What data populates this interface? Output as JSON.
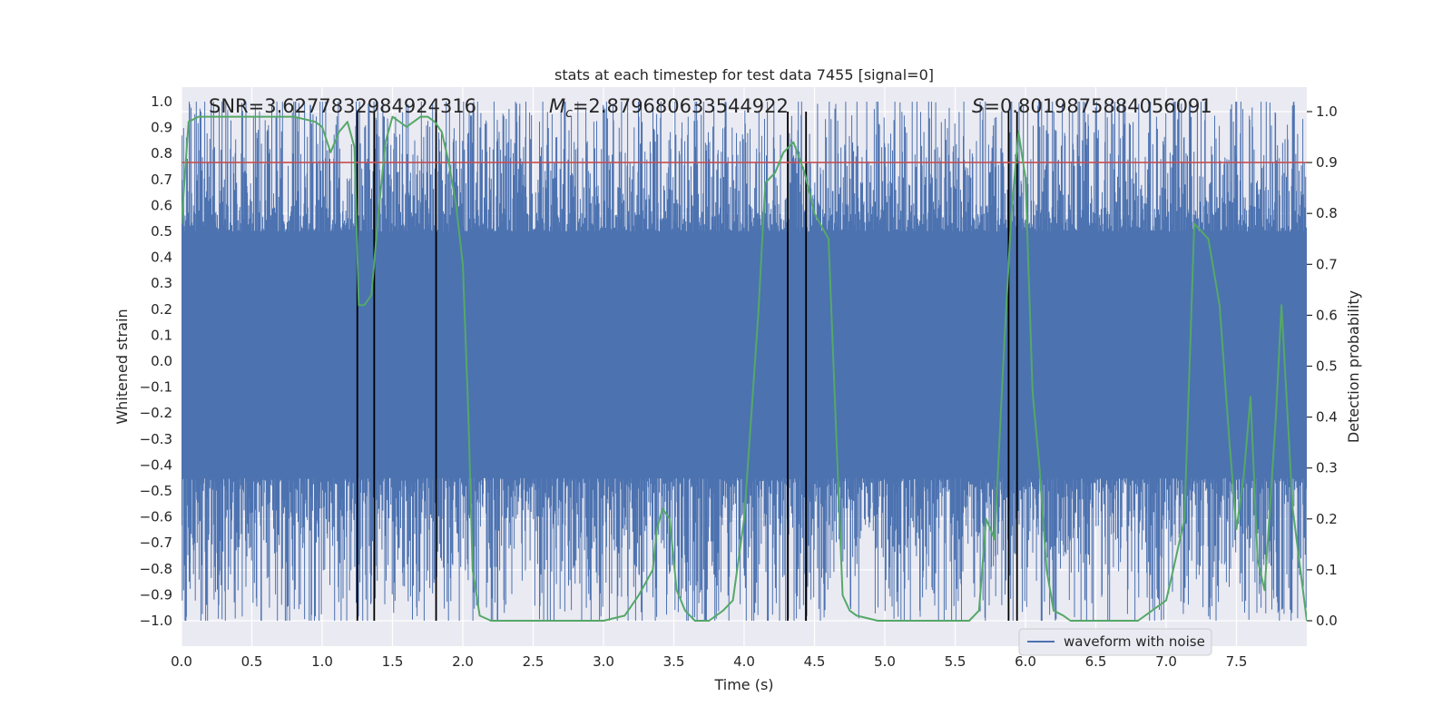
{
  "chart_data": {
    "type": "line",
    "title": "stats at each timestep for test data 7455 [signal=0]",
    "xlabel": "Time (s)",
    "ylabel": "Whitened strain",
    "y2label": "Detection probability",
    "xlim": [
      0.0,
      8.0
    ],
    "ylim": [
      -1.0,
      1.0
    ],
    "y2lim": [
      0.0,
      1.0
    ],
    "xticks": [
      0.0,
      0.5,
      1.0,
      1.5,
      2.0,
      2.5,
      3.0,
      3.5,
      4.0,
      4.5,
      5.0,
      5.5,
      6.0,
      6.5,
      7.0,
      7.5
    ],
    "xtick_labels": [
      "0.0",
      "0.5",
      "1.0",
      "1.5",
      "2.0",
      "2.5",
      "3.0",
      "3.5",
      "4.0",
      "4.5",
      "5.0",
      "5.5",
      "6.0",
      "6.5",
      "7.0",
      "7.5"
    ],
    "yticks": [
      1.0,
      0.9,
      0.8,
      0.7,
      0.6,
      0.5,
      0.4,
      0.3,
      0.2,
      0.1,
      0.0,
      -0.1,
      -0.2,
      -0.3,
      -0.4,
      -0.5,
      -0.6,
      -0.7,
      -0.8,
      -0.9,
      -1.0
    ],
    "ytick_labels": [
      "1.0",
      "0.9",
      "0.8",
      "0.7",
      "0.6",
      "0.5",
      "0.4",
      "0.3",
      "0.2",
      "0.1",
      "0.0",
      "−0.1",
      "−0.2",
      "−0.3",
      "−0.4",
      "−0.5",
      "−0.6",
      "−0.7",
      "−0.8",
      "−0.9",
      "−1.0"
    ],
    "y2ticks": [
      1.0,
      0.9,
      0.8,
      0.7,
      0.6,
      0.5,
      0.4,
      0.3,
      0.2,
      0.1,
      0.0
    ],
    "y2tick_labels": [
      "1.0",
      "0.9",
      "0.8",
      "0.7",
      "0.6",
      "0.5",
      "0.4",
      "0.3",
      "0.2",
      "0.1",
      "0.0"
    ],
    "annotations": {
      "snr": "SNR=3.6277832984924316",
      "mc_symbol": "M",
      "mc_sub": "c",
      "mc_value": "=2.879680633544922",
      "s_symbol": "S",
      "s_value": "=0.8019875884056091"
    },
    "series": [
      {
        "name": "waveform with noise",
        "axis": "left",
        "color": "#4c72b0",
        "style": "dense noise",
        "core_band": [
          -0.45,
          0.5
        ],
        "peak_max": 1.0,
        "trough_min": -1.0
      },
      {
        "name": "detection probability",
        "axis": "right",
        "color": "#55a868",
        "x": [
          0.0,
          0.05,
          0.12,
          0.25,
          0.5,
          0.8,
          0.95,
          1.0,
          1.06,
          1.12,
          1.18,
          1.23,
          1.26,
          1.3,
          1.35,
          1.4,
          1.45,
          1.5,
          1.55,
          1.6,
          1.65,
          1.7,
          1.75,
          1.8,
          1.85,
          1.9,
          1.95,
          2.0,
          2.04,
          2.07,
          2.12,
          2.2,
          2.5,
          2.8,
          3.0,
          3.15,
          3.25,
          3.35,
          3.38,
          3.42,
          3.47,
          3.52,
          3.58,
          3.65,
          3.75,
          3.85,
          3.92,
          4.0,
          4.1,
          4.15,
          4.22,
          4.28,
          4.35,
          4.43,
          4.5,
          4.6,
          4.7,
          4.75,
          4.8,
          4.95,
          5.05,
          5.3,
          5.5,
          5.6,
          5.67,
          5.72,
          5.78,
          5.85,
          5.9,
          5.95,
          6.0,
          6.05,
          6.1,
          6.15,
          6.2,
          6.27,
          6.32,
          6.4,
          6.6,
          6.8,
          7.0,
          7.05,
          7.13,
          7.2,
          7.3,
          7.38,
          7.45,
          7.5,
          7.55,
          7.6,
          7.65,
          7.7,
          7.78,
          7.82,
          7.9,
          8.0
        ],
        "y": [
          0.78,
          0.98,
          0.99,
          0.99,
          0.99,
          0.99,
          0.98,
          0.97,
          0.92,
          0.96,
          0.98,
          0.93,
          0.62,
          0.62,
          0.64,
          0.8,
          0.94,
          0.99,
          0.98,
          0.97,
          0.98,
          0.99,
          0.99,
          0.98,
          0.96,
          0.9,
          0.82,
          0.7,
          0.4,
          0.1,
          0.01,
          0.0,
          0.0,
          0.0,
          0.0,
          0.01,
          0.05,
          0.1,
          0.18,
          0.22,
          0.2,
          0.06,
          0.02,
          0.0,
          0.0,
          0.02,
          0.04,
          0.2,
          0.6,
          0.86,
          0.88,
          0.92,
          0.94,
          0.88,
          0.8,
          0.75,
          0.05,
          0.02,
          0.01,
          0.0,
          0.0,
          0.0,
          0.0,
          0.0,
          0.02,
          0.2,
          0.16,
          0.55,
          0.8,
          0.96,
          0.87,
          0.45,
          0.3,
          0.1,
          0.02,
          0.01,
          0.0,
          0.0,
          0.0,
          0.0,
          0.04,
          0.1,
          0.2,
          0.78,
          0.75,
          0.62,
          0.35,
          0.18,
          0.28,
          0.44,
          0.12,
          0.06,
          0.4,
          0.62,
          0.22,
          0.0
        ]
      }
    ],
    "threshold": {
      "axis": "right",
      "value": 0.9,
      "color": "#c44e52"
    },
    "vertical_lines": [
      1.25,
      1.37,
      1.81,
      4.31,
      4.44,
      5.88,
      5.94
    ],
    "legend": {
      "entries": [
        "waveform with noise"
      ],
      "position": "lower-right"
    }
  }
}
